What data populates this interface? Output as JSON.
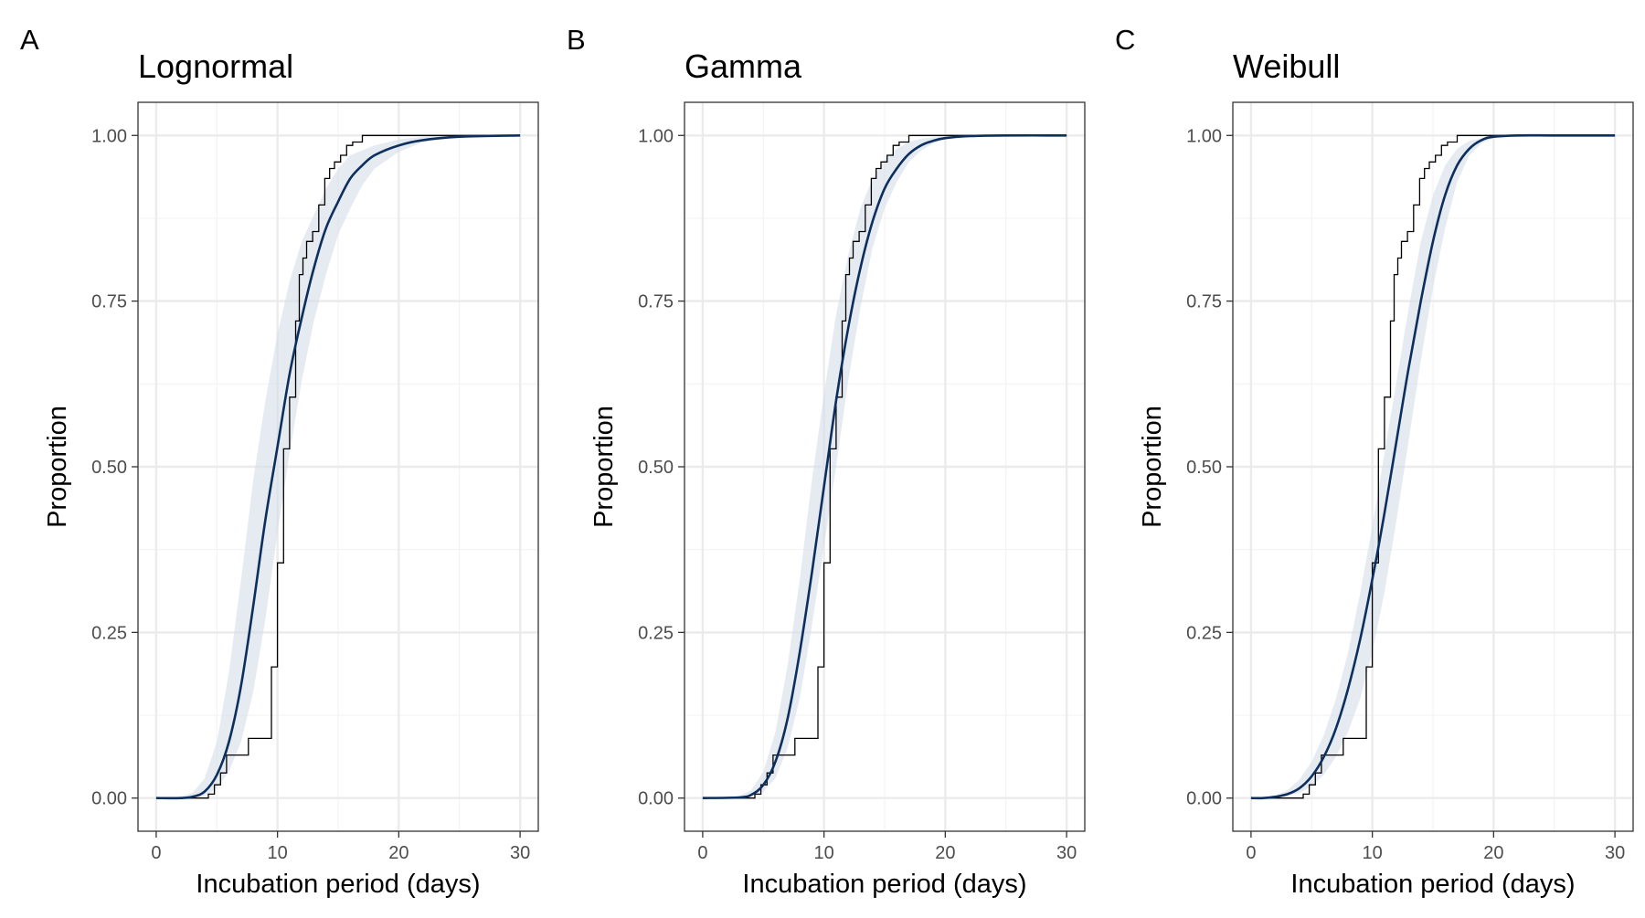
{
  "chart_data": [
    {
      "type": "line",
      "panel_label": "A",
      "title": "Lognormal",
      "xlabel": "Incubation period (days)",
      "ylabel": "Proportion",
      "xlim": [
        -1.5,
        31.5
      ],
      "ylim": [
        -0.05,
        1.05
      ],
      "xticks": [
        "0",
        "10",
        "20",
        "30"
      ],
      "yticks": [
        "0.00",
        "0.25",
        "0.50",
        "0.75",
        "1.00"
      ],
      "grid": true,
      "series": [
        {
          "kind": "fitted_cdf",
          "color": "#0d2f5e",
          "x": [
            0,
            2,
            3,
            4,
            5,
            6,
            7,
            8,
            9,
            10,
            11,
            12,
            13,
            14,
            15,
            16,
            17,
            18,
            20,
            22,
            25,
            30
          ],
          "y": [
            0.0,
            0.0,
            0.002,
            0.01,
            0.035,
            0.085,
            0.17,
            0.29,
            0.42,
            0.53,
            0.64,
            0.725,
            0.8,
            0.86,
            0.9,
            0.935,
            0.955,
            0.97,
            0.985,
            0.993,
            0.998,
            1.0
          ]
        },
        {
          "kind": "ci_lower",
          "x": [
            0,
            3,
            4,
            5,
            6,
            7,
            8,
            9,
            10,
            11,
            12,
            13,
            14,
            15,
            16,
            17,
            18,
            20,
            22,
            25,
            30
          ],
          "y": [
            0.0,
            0.0,
            0.003,
            0.015,
            0.04,
            0.085,
            0.16,
            0.27,
            0.4,
            0.52,
            0.63,
            0.72,
            0.79,
            0.85,
            0.89,
            0.925,
            0.95,
            0.975,
            0.99,
            0.997,
            1.0
          ]
        },
        {
          "kind": "ci_upper",
          "x": [
            0,
            2,
            3,
            4,
            5,
            6,
            7,
            8,
            9,
            10,
            11,
            12,
            13,
            14,
            15,
            16,
            18,
            20,
            22,
            25,
            30
          ],
          "y": [
            0.0,
            0.002,
            0.008,
            0.03,
            0.085,
            0.19,
            0.33,
            0.48,
            0.6,
            0.7,
            0.78,
            0.84,
            0.88,
            0.92,
            0.95,
            0.97,
            0.985,
            0.994,
            0.998,
            1.0,
            1.0
          ]
        }
      ]
    },
    {
      "type": "line",
      "panel_label": "B",
      "title": "Gamma",
      "xlabel": "Incubation period (days)",
      "ylabel": "Proportion",
      "xlim": [
        -1.5,
        31.5
      ],
      "ylim": [
        -0.05,
        1.05
      ],
      "xticks": [
        "0",
        "10",
        "20",
        "30"
      ],
      "yticks": [
        "0.00",
        "0.25",
        "0.50",
        "0.75",
        "1.00"
      ],
      "grid": true,
      "series": [
        {
          "kind": "fitted_cdf",
          "color": "#0d2f5e",
          "x": [
            0,
            3,
            4,
            5,
            6,
            7,
            8,
            9,
            10,
            11,
            12,
            13,
            14,
            15,
            16,
            17,
            18,
            19,
            20,
            22,
            25,
            30
          ],
          "y": [
            0.0,
            0.001,
            0.005,
            0.02,
            0.055,
            0.12,
            0.22,
            0.34,
            0.47,
            0.6,
            0.71,
            0.8,
            0.87,
            0.92,
            0.95,
            0.972,
            0.985,
            0.992,
            0.996,
            0.999,
            1.0,
            1.0
          ]
        },
        {
          "kind": "ci_lower",
          "x": [
            0,
            4,
            5,
            6,
            7,
            8,
            9,
            10,
            11,
            12,
            13,
            14,
            15,
            16,
            17,
            18,
            19,
            20,
            22,
            25,
            30
          ],
          "y": [
            0.0,
            0.002,
            0.01,
            0.03,
            0.075,
            0.15,
            0.26,
            0.38,
            0.5,
            0.63,
            0.74,
            0.83,
            0.89,
            0.93,
            0.96,
            0.977,
            0.988,
            0.994,
            0.998,
            1.0,
            1.0
          ]
        },
        {
          "kind": "ci_upper",
          "x": [
            0,
            3,
            4,
            5,
            6,
            7,
            8,
            9,
            10,
            11,
            12,
            13,
            14,
            15,
            16,
            17,
            18,
            20,
            22,
            25,
            30
          ],
          "y": [
            0.0,
            0.003,
            0.012,
            0.04,
            0.1,
            0.2,
            0.33,
            0.48,
            0.61,
            0.73,
            0.82,
            0.89,
            0.935,
            0.963,
            0.98,
            0.99,
            0.995,
            0.999,
            1.0,
            1.0,
            1.0
          ]
        }
      ]
    },
    {
      "type": "line",
      "panel_label": "C",
      "title": "Weibull",
      "xlabel": "Incubation period (days)",
      "ylabel": "Proportion",
      "xlim": [
        -1.5,
        31.5
      ],
      "ylim": [
        -0.05,
        1.05
      ],
      "xticks": [
        "0",
        "10",
        "20",
        "30"
      ],
      "yticks": [
        "0.00",
        "0.25",
        "0.50",
        "0.75",
        "1.00"
      ],
      "grid": true,
      "series": [
        {
          "kind": "fitted_cdf",
          "color": "#0d2f5e",
          "x": [
            0,
            1,
            2,
            3,
            4,
            5,
            6,
            7,
            8,
            9,
            10,
            11,
            12,
            13,
            14,
            15,
            16,
            17,
            18,
            19,
            20,
            22,
            25,
            30
          ],
          "y": [
            0.0,
            0.0,
            0.002,
            0.006,
            0.015,
            0.033,
            0.062,
            0.105,
            0.165,
            0.24,
            0.33,
            0.43,
            0.54,
            0.65,
            0.75,
            0.84,
            0.91,
            0.955,
            0.98,
            0.993,
            0.998,
            1.0,
            1.0,
            1.0
          ]
        },
        {
          "kind": "ci_lower",
          "x": [
            0,
            2,
            3,
            4,
            5,
            6,
            7,
            8,
            9,
            10,
            11,
            12,
            13,
            14,
            15,
            16,
            17,
            18,
            19,
            20,
            22,
            25,
            30
          ],
          "y": [
            0.0,
            0.001,
            0.003,
            0.008,
            0.018,
            0.035,
            0.062,
            0.1,
            0.15,
            0.22,
            0.31,
            0.42,
            0.54,
            0.66,
            0.77,
            0.86,
            0.93,
            0.97,
            0.988,
            0.996,
            1.0,
            1.0,
            1.0
          ]
        },
        {
          "kind": "ci_upper",
          "x": [
            0,
            1,
            2,
            3,
            4,
            5,
            6,
            7,
            8,
            9,
            10,
            11,
            12,
            13,
            14,
            15,
            16,
            17,
            18,
            20,
            22,
            25,
            30
          ],
          "y": [
            0.0,
            0.001,
            0.004,
            0.012,
            0.028,
            0.055,
            0.095,
            0.15,
            0.22,
            0.31,
            0.41,
            0.52,
            0.63,
            0.74,
            0.84,
            0.91,
            0.955,
            0.98,
            0.992,
            0.999,
            1.0,
            1.0,
            1.0
          ]
        }
      ]
    }
  ],
  "empirical_cdf": {
    "description_visible": false,
    "x": [
      0,
      4.3,
      4.8,
      5.3,
      5.8,
      7.6,
      9.5,
      10.0,
      10.5,
      11.0,
      11.5,
      11.8,
      12.1,
      12.4,
      12.9,
      13.4,
      13.9,
      14.3,
      14.7,
      15.2,
      15.7,
      16.2,
      17.0,
      30
    ],
    "y": [
      0.0,
      0.006,
      0.02,
      0.038,
      0.065,
      0.09,
      0.198,
      0.355,
      0.527,
      0.605,
      0.72,
      0.79,
      0.815,
      0.84,
      0.855,
      0.895,
      0.935,
      0.95,
      0.96,
      0.97,
      0.985,
      0.99,
      1.0,
      1.0
    ]
  }
}
